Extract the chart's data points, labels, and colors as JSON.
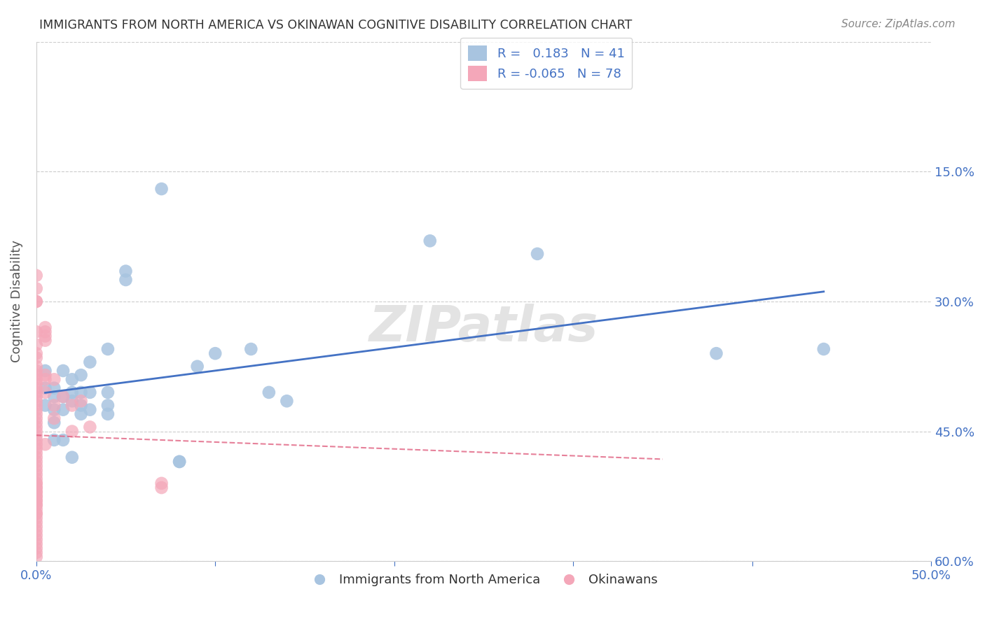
{
  "title": "IMMIGRANTS FROM NORTH AMERICA VS OKINAWAN COGNITIVE DISABILITY CORRELATION CHART",
  "source": "Source: ZipAtlas.com",
  "xlabel": "",
  "ylabel": "Cognitive Disability",
  "xlim": [
    0.0,
    0.5
  ],
  "ylim": [
    0.0,
    0.6
  ],
  "xticks": [
    0.0,
    0.1,
    0.2,
    0.3,
    0.4,
    0.5
  ],
  "yticks": [
    0.0,
    0.15,
    0.3,
    0.45,
    0.6
  ],
  "ytick_labels": [
    "",
    "15.0%",
    "30.0%",
    "45.0%",
    "60.0%"
  ],
  "xtick_labels": [
    "0.0%",
    "",
    "",
    "",
    "",
    "50.0%"
  ],
  "right_ytick_labels": [
    "60.0%",
    "45.0%",
    "30.0%",
    "15.0%",
    ""
  ],
  "blue_color": "#a8c4e0",
  "pink_color": "#f4a7b9",
  "blue_line_color": "#4472c4",
  "pink_line_color": "#e06080",
  "grid_color": "#cccccc",
  "watermark": "ZIPatlas",
  "legend_R_blue": "R =   0.183",
  "legend_N_blue": "N = 41",
  "legend_R_pink": "R = -0.065",
  "legend_N_pink": "N = 78",
  "blue_scatter_x": [
    0.005,
    0.005,
    0.005,
    0.01,
    0.01,
    0.01,
    0.01,
    0.01,
    0.015,
    0.015,
    0.015,
    0.015,
    0.02,
    0.02,
    0.02,
    0.02,
    0.025,
    0.025,
    0.025,
    0.025,
    0.03,
    0.03,
    0.03,
    0.04,
    0.04,
    0.04,
    0.04,
    0.05,
    0.05,
    0.07,
    0.08,
    0.08,
    0.09,
    0.1,
    0.12,
    0.13,
    0.14,
    0.22,
    0.28,
    0.38,
    0.44
  ],
  "blue_scatter_y": [
    0.2,
    0.22,
    0.18,
    0.2,
    0.19,
    0.175,
    0.16,
    0.14,
    0.22,
    0.19,
    0.175,
    0.14,
    0.21,
    0.195,
    0.185,
    0.12,
    0.215,
    0.195,
    0.18,
    0.17,
    0.23,
    0.195,
    0.175,
    0.245,
    0.195,
    0.18,
    0.17,
    0.335,
    0.325,
    0.43,
    0.115,
    0.115,
    0.225,
    0.24,
    0.245,
    0.195,
    0.185,
    0.37,
    0.355,
    0.24,
    0.245
  ],
  "pink_scatter_x": [
    0.0,
    0.0,
    0.0,
    0.0,
    0.0,
    0.0,
    0.0,
    0.0,
    0.0,
    0.0,
    0.0,
    0.0,
    0.0,
    0.0,
    0.0,
    0.0,
    0.0,
    0.0,
    0.0,
    0.0,
    0.0,
    0.0,
    0.0,
    0.0,
    0.0,
    0.0,
    0.0,
    0.0,
    0.0,
    0.0,
    0.0,
    0.0,
    0.0,
    0.0,
    0.0,
    0.0,
    0.0,
    0.0,
    0.0,
    0.0,
    0.0,
    0.0,
    0.0,
    0.0,
    0.0,
    0.0,
    0.0,
    0.0,
    0.0,
    0.0,
    0.0,
    0.0,
    0.0,
    0.0,
    0.0,
    0.0,
    0.0,
    0.0,
    0.0,
    0.0,
    0.005,
    0.005,
    0.005,
    0.005,
    0.005,
    0.005,
    0.005,
    0.005,
    0.01,
    0.01,
    0.01,
    0.015,
    0.02,
    0.02,
    0.025,
    0.03,
    0.07,
    0.07
  ],
  "pink_scatter_y": [
    0.3,
    0.265,
    0.25,
    0.24,
    0.235,
    0.225,
    0.22,
    0.215,
    0.21,
    0.205,
    0.2,
    0.195,
    0.19,
    0.185,
    0.18,
    0.175,
    0.17,
    0.165,
    0.16,
    0.155,
    0.15,
    0.145,
    0.14,
    0.135,
    0.13,
    0.125,
    0.12,
    0.115,
    0.11,
    0.105,
    0.1,
    0.095,
    0.09,
    0.085,
    0.08,
    0.075,
    0.07,
    0.065,
    0.055,
    0.05,
    0.045,
    0.04,
    0.035,
    0.03,
    0.025,
    0.02,
    0.015,
    0.01,
    0.005,
    0.055,
    0.06,
    0.065,
    0.07,
    0.075,
    0.08,
    0.085,
    0.09,
    0.3,
    0.315,
    0.33,
    0.27,
    0.265,
    0.26,
    0.255,
    0.215,
    0.21,
    0.135,
    0.195,
    0.21,
    0.18,
    0.165,
    0.19,
    0.18,
    0.15,
    0.185,
    0.155,
    0.09,
    0.085
  ],
  "background_color": "#ffffff",
  "title_color": "#333333",
  "axis_label_color": "#555555",
  "tick_color_x": "#4472c4",
  "tick_color_y_right": "#4472c4"
}
